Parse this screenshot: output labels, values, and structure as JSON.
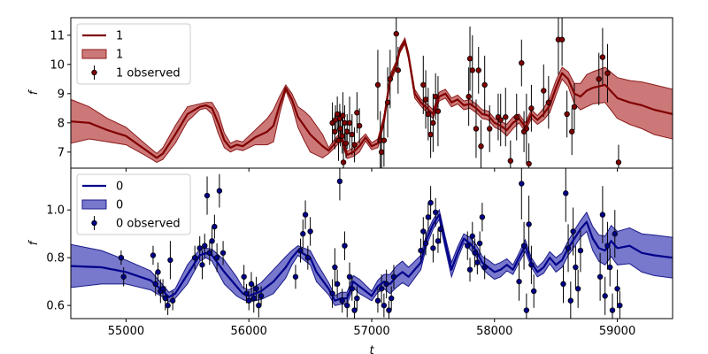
{
  "figure": {
    "xlabel": "t",
    "background": "#ffffff"
  },
  "chart_data": [
    {
      "type": "line",
      "panel": "top",
      "ylabel": "f",
      "xlim": [
        54550,
        59450
      ],
      "ylim": [
        6.45,
        11.6
      ],
      "xticks": [
        55000,
        56000,
        57000,
        58000,
        59000
      ],
      "xtick_labels": [
        "55000",
        "56000",
        "57000",
        "58000",
        "59000"
      ],
      "yticks": [
        7,
        8,
        9,
        10,
        11
      ],
      "ytick_labels": [
        "7",
        "8",
        "9",
        "10",
        "11"
      ],
      "show_xtick_labels": false,
      "grid": false,
      "legend_position": "top-left",
      "colors": {
        "line": "#800000",
        "band": "#b03030",
        "band_edge": "#8b1a1a",
        "point": "#800000"
      },
      "legend": [
        {
          "kind": "line",
          "label": "1"
        },
        {
          "kind": "band",
          "label": "1"
        },
        {
          "kind": "errorbar",
          "label": "1 observed"
        }
      ],
      "model_t": [
        54550,
        54700,
        54850,
        55000,
        55150,
        55250,
        55300,
        55400,
        55500,
        55600,
        55650,
        55700,
        55750,
        55800,
        55850,
        55900,
        55950,
        56000,
        56050,
        56100,
        56150,
        56200,
        56250,
        56300,
        56350,
        56400,
        56450,
        56500,
        56600,
        56650,
        56700,
        56750,
        56800,
        56850,
        56900,
        56950,
        57000,
        57050,
        57100,
        57150,
        57200,
        57230,
        57270,
        57300,
        57350,
        57400,
        57450,
        57500,
        57550,
        57600,
        57650,
        57700,
        57750,
        57800,
        57850,
        57900,
        57950,
        58000,
        58050,
        58100,
        58150,
        58200,
        58250,
        58300,
        58350,
        58400,
        58450,
        58500,
        58550,
        58600,
        58650,
        58700,
        58750,
        58800,
        58900,
        59000,
        59100,
        59200,
        59300,
        59450
      ],
      "model_mean": [
        8.05,
        8.0,
        7.75,
        7.55,
        7.1,
        6.8,
        6.95,
        7.6,
        8.3,
        8.55,
        8.6,
        8.5,
        8.0,
        7.4,
        7.15,
        7.25,
        7.2,
        7.35,
        7.5,
        7.6,
        7.7,
        7.9,
        8.6,
        9.2,
        8.8,
        8.2,
        7.9,
        7.6,
        7.2,
        7.05,
        7.3,
        7.55,
        6.9,
        7.0,
        7.2,
        7.5,
        7.2,
        7.3,
        8.1,
        9.5,
        10.0,
        10.5,
        10.8,
        10.3,
        9.0,
        8.7,
        8.5,
        8.3,
        8.9,
        9.0,
        8.7,
        8.8,
        8.6,
        8.65,
        8.5,
        8.3,
        8.25,
        8.0,
        7.9,
        7.75,
        8.0,
        8.15,
        7.85,
        8.3,
        8.1,
        8.3,
        8.6,
        9.2,
        9.7,
        9.5,
        9.0,
        8.9,
        9.1,
        9.2,
        9.3,
        8.85,
        8.7,
        8.6,
        8.45,
        8.3
      ],
      "model_band": [
        0.75,
        0.55,
        0.4,
        0.3,
        0.2,
        0.15,
        0.2,
        0.3,
        0.25,
        0.1,
        0.1,
        0.2,
        0.35,
        0.25,
        0.15,
        0.15,
        0.15,
        0.2,
        0.25,
        0.35,
        0.45,
        0.55,
        0.3,
        0.1,
        0.2,
        0.35,
        0.5,
        0.6,
        0.4,
        0.1,
        0.15,
        0.15,
        0.12,
        0.15,
        0.2,
        0.12,
        0.12,
        0.15,
        0.15,
        0.15,
        0.12,
        0.1,
        0.1,
        0.12,
        0.15,
        0.12,
        0.15,
        0.15,
        0.15,
        0.15,
        0.15,
        0.15,
        0.15,
        0.15,
        0.15,
        0.15,
        0.15,
        0.15,
        0.15,
        0.2,
        0.2,
        0.15,
        0.15,
        0.15,
        0.15,
        0.2,
        0.25,
        0.25,
        0.2,
        0.25,
        0.35,
        0.45,
        0.55,
        0.55,
        0.6,
        0.7,
        0.75,
        0.8,
        0.85,
        0.85
      ],
      "observed": [
        [
          56680,
          8.0,
          0.7
        ],
        [
          56700,
          7.7,
          0.6
        ],
        [
          56705,
          8.1,
          0.5
        ],
        [
          56720,
          8.3,
          0.6
        ],
        [
          56730,
          7.4,
          0.7
        ],
        [
          56740,
          8.15,
          0.5
        ],
        [
          56745,
          7.8,
          0.6
        ],
        [
          56760,
          7.55,
          0.6
        ],
        [
          56765,
          8.25,
          0.8
        ],
        [
          56770,
          6.65,
          0.5
        ],
        [
          56780,
          8.0,
          0.6
        ],
        [
          56790,
          7.3,
          0.5
        ],
        [
          56800,
          7.7,
          0.6
        ],
        [
          56820,
          8.0,
          0.9
        ],
        [
          56840,
          7.6,
          0.7
        ],
        [
          56860,
          7.25,
          0.6
        ],
        [
          56880,
          8.35,
          0.7
        ],
        [
          56900,
          7.9,
          0.6
        ],
        [
          57050,
          9.3,
          1.2
        ],
        [
          57070,
          7.4,
          1.0
        ],
        [
          57080,
          7.0,
          0.8
        ],
        [
          57100,
          7.4,
          0.9
        ],
        [
          57130,
          8.7,
          1.2
        ],
        [
          57150,
          9.5,
          1.0
        ],
        [
          57200,
          11.05,
          1.2
        ],
        [
          57215,
          9.8,
          0.8
        ],
        [
          57420,
          9.3,
          1.0
        ],
        [
          57440,
          8.8,
          1.0
        ],
        [
          57460,
          8.3,
          0.9
        ],
        [
          57480,
          7.6,
          0.8
        ],
        [
          57500,
          8.0,
          1.0
        ],
        [
          57520,
          8.9,
          0.8
        ],
        [
          57540,
          8.4,
          1.2
        ],
        [
          57790,
          8.9,
          1.0
        ],
        [
          57800,
          10.2,
          1.1
        ],
        [
          57820,
          9.8,
          1.2
        ],
        [
          57850,
          7.8,
          1.0
        ],
        [
          57870,
          9.8,
          0.8
        ],
        [
          57890,
          7.2,
          0.9
        ],
        [
          57920,
          9.3,
          1.0
        ],
        [
          57960,
          7.8,
          0.8
        ],
        [
          58030,
          8.2,
          0.8
        ],
        [
          58050,
          8.1,
          0.9
        ],
        [
          58090,
          8.2,
          1.0
        ],
        [
          58130,
          6.7,
          0.7
        ],
        [
          58180,
          8.2,
          0.8
        ],
        [
          58220,
          10.05,
          0.8
        ],
        [
          58240,
          7.7,
          0.7
        ],
        [
          58260,
          7.8,
          1.2
        ],
        [
          58280,
          6.6,
          0.7
        ],
        [
          58300,
          8.5,
          0.8
        ],
        [
          58400,
          9.1,
          0.9
        ],
        [
          58440,
          8.7,
          0.9
        ],
        [
          58520,
          10.85,
          1.2
        ],
        [
          58550,
          10.85,
          0.9
        ],
        [
          58590,
          8.3,
          0.8
        ],
        [
          58630,
          7.7,
          0.8
        ],
        [
          58650,
          8.55,
          0.8
        ],
        [
          58850,
          9.5,
          0.9
        ],
        [
          58880,
          10.25,
          1.0
        ],
        [
          58920,
          9.7,
          1.0
        ],
        [
          59010,
          6.65,
          0.6
        ]
      ]
    },
    {
      "type": "line",
      "panel": "bottom",
      "ylabel": "f",
      "xlim": [
        54550,
        59450
      ],
      "ylim": [
        0.545,
        1.175
      ],
      "xticks": [
        55000,
        56000,
        57000,
        58000,
        59000
      ],
      "xtick_labels": [
        "55000",
        "56000",
        "57000",
        "58000",
        "59000"
      ],
      "yticks": [
        0.6,
        0.8,
        1.0
      ],
      "ytick_labels": [
        "0.6",
        "0.8",
        "1.0"
      ],
      "show_xtick_labels": true,
      "grid": false,
      "legend_position": "top-left",
      "colors": {
        "line": "#00008b",
        "band": "#3030b0",
        "band_edge": "#1a1a8b",
        "point": "#00008b"
      },
      "legend": [
        {
          "kind": "line",
          "label": "0"
        },
        {
          "kind": "band",
          "label": "0"
        },
        {
          "kind": "errorbar",
          "label": "0 observed"
        }
      ],
      "model_t": [
        54550,
        54800,
        55000,
        55200,
        55300,
        55350,
        55400,
        55500,
        55600,
        55650,
        55700,
        55800,
        55900,
        55950,
        56000,
        56100,
        56200,
        56300,
        56350,
        56400,
        56500,
        56550,
        56650,
        56700,
        56750,
        56800,
        56850,
        56900,
        56950,
        57000,
        57050,
        57100,
        57150,
        57200,
        57250,
        57300,
        57350,
        57400,
        57450,
        57500,
        57550,
        57600,
        57650,
        57700,
        57750,
        57800,
        57850,
        57900,
        57950,
        58000,
        58050,
        58100,
        58150,
        58200,
        58250,
        58300,
        58350,
        58400,
        58450,
        58500,
        58550,
        58600,
        58650,
        58700,
        58750,
        58800,
        58850,
        58900,
        58950,
        59000,
        59100,
        59200,
        59300,
        59450
      ],
      "model_mean": [
        0.765,
        0.76,
        0.74,
        0.705,
        0.66,
        0.635,
        0.65,
        0.73,
        0.81,
        0.82,
        0.81,
        0.74,
        0.68,
        0.65,
        0.64,
        0.66,
        0.7,
        0.76,
        0.8,
        0.83,
        0.8,
        0.74,
        0.67,
        0.62,
        0.63,
        0.63,
        0.7,
        0.68,
        0.66,
        0.64,
        0.68,
        0.7,
        0.69,
        0.72,
        0.74,
        0.72,
        0.75,
        0.78,
        0.88,
        0.94,
        0.98,
        0.86,
        0.75,
        0.82,
        0.88,
        0.86,
        0.83,
        0.78,
        0.76,
        0.74,
        0.75,
        0.77,
        0.75,
        0.8,
        0.85,
        0.78,
        0.74,
        0.76,
        0.8,
        0.77,
        0.79,
        0.84,
        0.88,
        0.92,
        0.95,
        0.88,
        0.84,
        0.83,
        0.87,
        0.84,
        0.85,
        0.82,
        0.81,
        0.8
      ],
      "model_band": [
        0.09,
        0.07,
        0.05,
        0.04,
        0.025,
        0.02,
        0.02,
        0.04,
        0.025,
        0.02,
        0.025,
        0.05,
        0.04,
        0.025,
        0.025,
        0.035,
        0.05,
        0.045,
        0.03,
        0.02,
        0.03,
        0.04,
        0.025,
        0.02,
        0.025,
        0.025,
        0.025,
        0.03,
        0.025,
        0.02,
        0.025,
        0.03,
        0.04,
        0.045,
        0.045,
        0.04,
        0.035,
        0.03,
        0.025,
        0.02,
        0.02,
        0.025,
        0.03,
        0.025,
        0.02,
        0.025,
        0.025,
        0.025,
        0.03,
        0.03,
        0.03,
        0.025,
        0.02,
        0.02,
        0.025,
        0.02,
        0.02,
        0.025,
        0.025,
        0.03,
        0.03,
        0.03,
        0.035,
        0.035,
        0.04,
        0.05,
        0.055,
        0.06,
        0.065,
        0.07,
        0.075,
        0.08,
        0.085,
        0.085
      ],
      "observed": [
        [
          54960,
          0.8,
          0.03
        ],
        [
          54980,
          0.72,
          0.04
        ],
        [
          55220,
          0.81,
          0.04
        ],
        [
          55240,
          0.69,
          0.05
        ],
        [
          55260,
          0.74,
          0.04
        ],
        [
          55280,
          0.66,
          0.05
        ],
        [
          55300,
          0.67,
          0.04
        ],
        [
          55320,
          0.63,
          0.05
        ],
        [
          55340,
          0.6,
          0.04
        ],
        [
          55360,
          0.79,
          0.08
        ],
        [
          55380,
          0.62,
          0.04
        ],
        [
          55560,
          0.8,
          0.05
        ],
        [
          55600,
          0.84,
          0.05
        ],
        [
          55620,
          0.77,
          0.06
        ],
        [
          55640,
          0.85,
          0.05
        ],
        [
          55660,
          1.06,
          0.08
        ],
        [
          55680,
          0.82,
          0.05
        ],
        [
          55700,
          0.87,
          0.06
        ],
        [
          55720,
          0.93,
          0.05
        ],
        [
          55740,
          0.8,
          0.06
        ],
        [
          55760,
          1.08,
          0.07
        ],
        [
          55790,
          0.82,
          0.05
        ],
        [
          55960,
          0.72,
          0.05
        ],
        [
          55980,
          0.65,
          0.04
        ],
        [
          56000,
          0.62,
          0.04
        ],
        [
          56020,
          0.69,
          0.05
        ],
        [
          56040,
          0.63,
          0.06
        ],
        [
          56060,
          0.67,
          0.05
        ],
        [
          56080,
          0.6,
          0.05
        ],
        [
          56100,
          0.64,
          0.04
        ],
        [
          56380,
          0.72,
          0.05
        ],
        [
          56420,
          0.83,
          0.05
        ],
        [
          56440,
          0.9,
          0.06
        ],
        [
          56460,
          0.98,
          0.06
        ],
        [
          56480,
          0.8,
          0.05
        ],
        [
          56500,
          0.91,
          0.06
        ],
        [
          56680,
          0.65,
          0.06
        ],
        [
          56700,
          0.76,
          0.08
        ],
        [
          56720,
          0.69,
          0.06
        ],
        [
          56740,
          1.12,
          0.08
        ],
        [
          56760,
          0.62,
          0.05
        ],
        [
          56780,
          0.85,
          0.06
        ],
        [
          56800,
          0.6,
          0.05
        ],
        [
          56820,
          0.72,
          0.06
        ],
        [
          56840,
          0.67,
          0.05
        ],
        [
          56860,
          0.58,
          0.04
        ],
        [
          56880,
          0.63,
          0.05
        ],
        [
          57050,
          0.62,
          0.05
        ],
        [
          57080,
          0.67,
          0.06
        ],
        [
          57100,
          0.6,
          0.05
        ],
        [
          57120,
          0.69,
          0.06
        ],
        [
          57140,
          0.58,
          0.04
        ],
        [
          57160,
          0.63,
          0.05
        ],
        [
          57180,
          0.72,
          0.05
        ],
        [
          57400,
          0.83,
          0.05
        ],
        [
          57420,
          0.91,
          0.06
        ],
        [
          57440,
          0.86,
          0.05
        ],
        [
          57460,
          0.97,
          0.06
        ],
        [
          57480,
          1.03,
          0.07
        ],
        [
          57500,
          0.84,
          0.06
        ],
        [
          57520,
          0.99,
          0.06
        ],
        [
          57540,
          0.87,
          0.05
        ],
        [
          57560,
          0.92,
          0.06
        ],
        [
          57780,
          0.85,
          0.06
        ],
        [
          57800,
          0.75,
          0.05
        ],
        [
          57820,
          0.89,
          0.06
        ],
        [
          57840,
          0.82,
          0.06
        ],
        [
          57860,
          0.78,
          0.05
        ],
        [
          57880,
          0.86,
          0.05
        ],
        [
          57900,
          0.97,
          0.06
        ],
        [
          57920,
          0.76,
          0.05
        ],
        [
          58200,
          0.7,
          0.08
        ],
        [
          58220,
          1.11,
          0.15
        ],
        [
          58240,
          0.85,
          0.1
        ],
        [
          58260,
          0.58,
          0.07
        ],
        [
          58280,
          0.94,
          0.12
        ],
        [
          58300,
          0.77,
          0.08
        ],
        [
          58320,
          0.66,
          0.07
        ],
        [
          58560,
          0.69,
          0.08
        ],
        [
          58580,
          1.07,
          0.12
        ],
        [
          58600,
          0.84,
          0.1
        ],
        [
          58620,
          0.62,
          0.08
        ],
        [
          58640,
          0.91,
          0.1
        ],
        [
          58660,
          0.76,
          0.09
        ],
        [
          58680,
          0.67,
          0.08
        ],
        [
          58700,
          0.83,
          0.09
        ],
        [
          58860,
          0.72,
          0.1
        ],
        [
          58880,
          0.98,
          0.12
        ],
        [
          58900,
          0.64,
          0.08
        ],
        [
          58920,
          0.85,
          0.1
        ],
        [
          58940,
          0.76,
          0.08
        ],
        [
          58960,
          0.58,
          0.07
        ],
        [
          58980,
          0.9,
          0.1
        ],
        [
          59000,
          0.67,
          0.08
        ],
        [
          59020,
          0.6,
          0.06
        ]
      ]
    }
  ]
}
